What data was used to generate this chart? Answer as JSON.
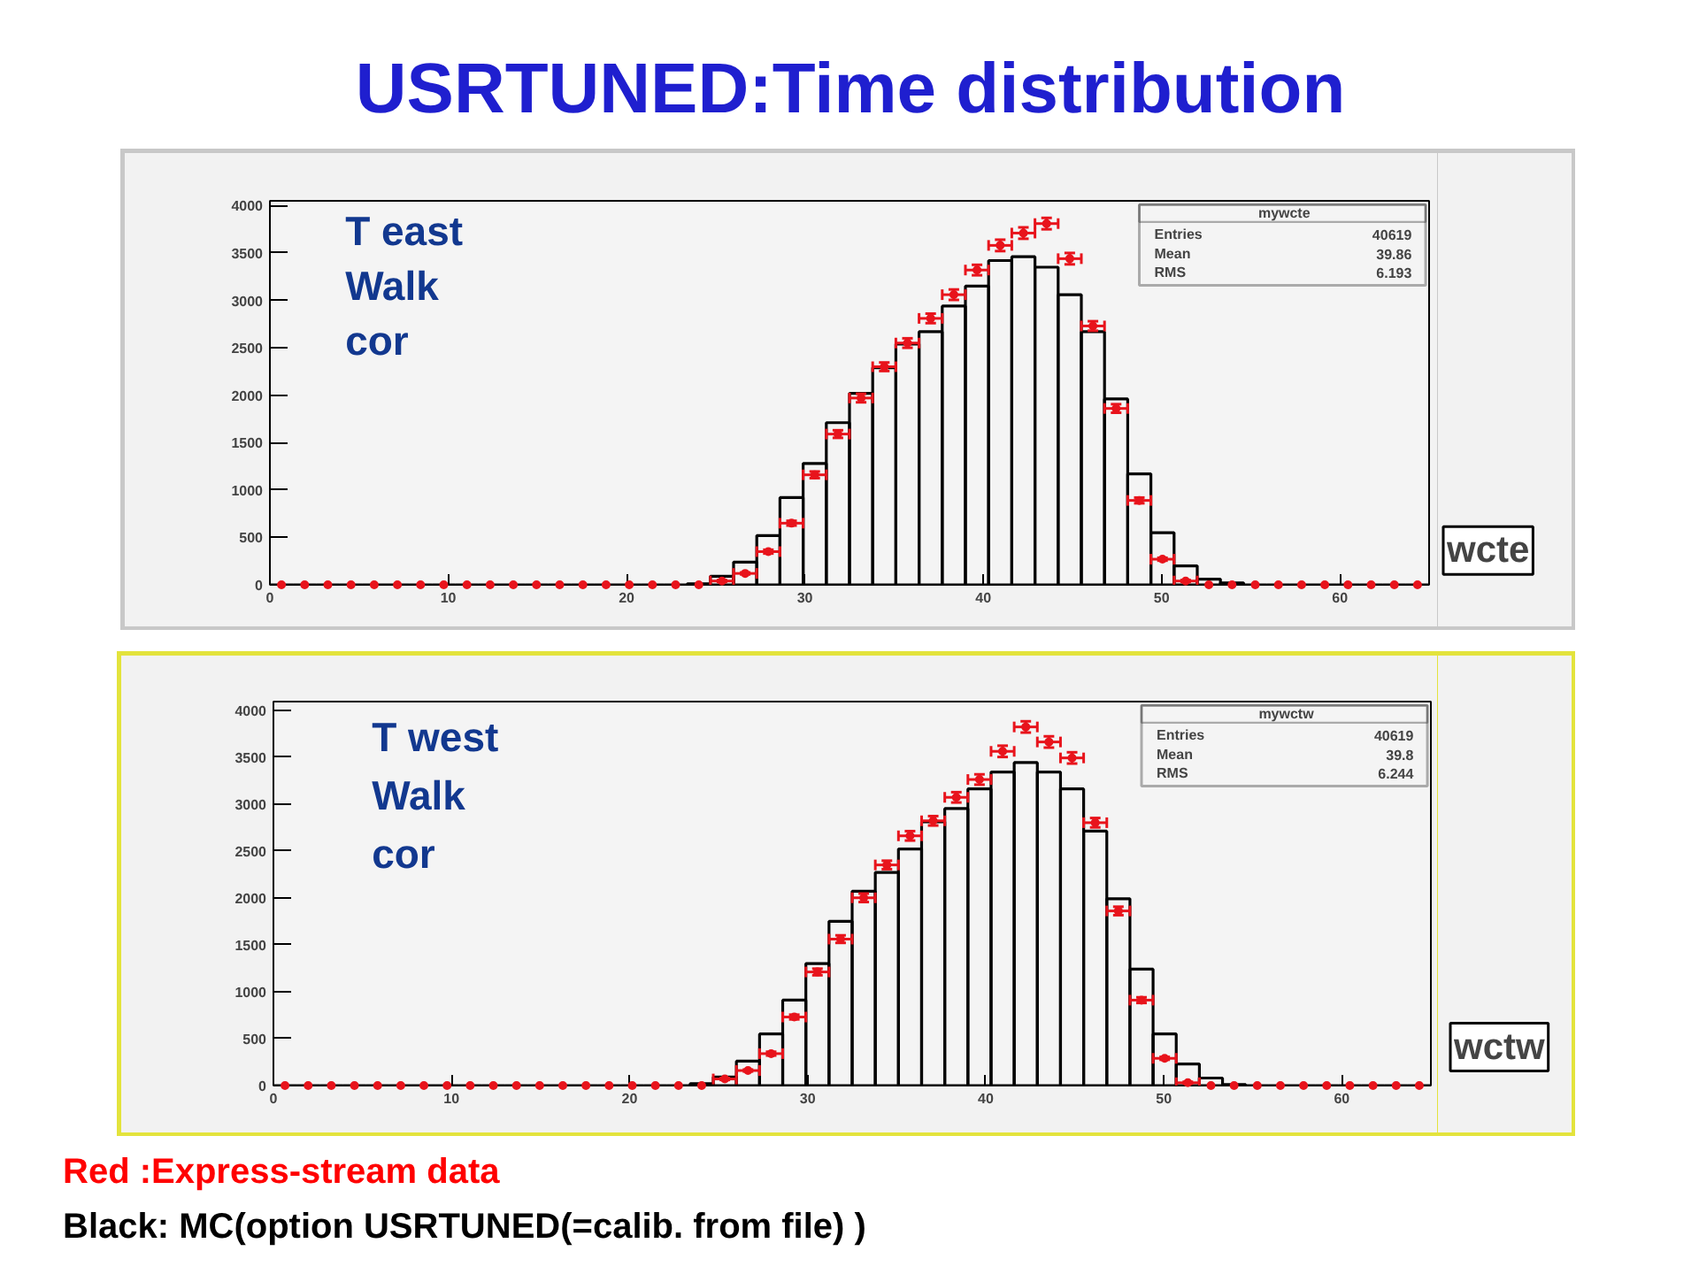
{
  "chart_data": [
    {
      "type": "histogram",
      "title": "USRTUNED:Time distribution",
      "bins": [
        0,
        1.3,
        2.6,
        3.9,
        5.2,
        6.5,
        7.8,
        9.1,
        10.4,
        11.7,
        13,
        14.3,
        15.6,
        16.9,
        18.2,
        19.5,
        20.8,
        22.1,
        23.4,
        24.7,
        26,
        27.3,
        28.6,
        29.9,
        31.2,
        32.5,
        33.8,
        35.1,
        36.4,
        37.7,
        39,
        40.3,
        41.6,
        42.9,
        44.2,
        45.5,
        46.8,
        48.1,
        49.4,
        50.7,
        52,
        53.3,
        54.6,
        55.9,
        57.2,
        58.5,
        59.8,
        61.1,
        62.4,
        63.7,
        65
      ],
      "xlim": [
        0,
        65
      ],
      "ylim": [
        0,
        4050
      ],
      "xticks": [
        0,
        10,
        20,
        30,
        40,
        50,
        60
      ],
      "yticks": [
        0,
        500,
        1000,
        1500,
        2000,
        2500,
        3000,
        3500,
        4000
      ],
      "series": [
        {
          "color": "#000000",
          "values": [
            0,
            0,
            0,
            0,
            0,
            0,
            0,
            0,
            0,
            0,
            0,
            0,
            0,
            0,
            0,
            0,
            0,
            0,
            10,
            90,
            240,
            520,
            920,
            1280,
            1710,
            2020,
            2290,
            2540,
            2670,
            2940,
            3150,
            3420,
            3460,
            3350,
            3060,
            2670,
            1960,
            1170,
            550,
            200,
            60,
            20,
            0,
            0,
            0,
            0,
            0,
            0,
            0,
            0
          ]
        },
        {
          "type": "scatter",
          "color": "#e8141c",
          "marker": "circle",
          "x": [
            0.65,
            1.95,
            3.25,
            4.55,
            5.85,
            7.15,
            8.45,
            9.75,
            11.05,
            12.35,
            13.65,
            14.95,
            16.25,
            17.55,
            18.85,
            20.15,
            21.45,
            22.75,
            24.05,
            25.35,
            26.65,
            27.95,
            29.25,
            30.55,
            31.85,
            33.15,
            34.45,
            35.75,
            37.05,
            38.35,
            39.65,
            40.95,
            42.25,
            43.55,
            44.85,
            46.15,
            47.45,
            48.75,
            50.05,
            51.35,
            52.65,
            53.95,
            55.25,
            56.55,
            57.85,
            59.15,
            60.45,
            61.75,
            63.05,
            64.35
          ],
          "values": [
            0,
            0,
            0,
            0,
            0,
            0,
            0,
            0,
            0,
            0,
            0,
            0,
            0,
            0,
            0,
            0,
            0,
            0,
            0,
            40,
            120,
            350,
            650,
            1160,
            1590,
            1970,
            2300,
            2550,
            2810,
            3060,
            3320,
            3580,
            3710,
            3810,
            3440,
            2730,
            1860,
            890,
            270,
            40,
            0,
            0,
            0,
            0,
            0,
            0,
            0,
            0,
            0,
            0
          ],
          "errors": [
            null,
            null,
            null,
            null,
            null,
            null,
            null,
            null,
            null,
            null,
            null,
            null,
            null,
            null,
            null,
            null,
            null,
            null,
            null,
            10,
            10,
            20,
            25,
            35,
            40,
            45,
            45,
            50,
            50,
            55,
            55,
            60,
            60,
            60,
            60,
            50,
            45,
            30,
            15,
            10,
            null,
            null,
            null,
            null,
            null,
            null,
            null,
            null,
            null,
            null
          ],
          "xerrors": [
            null,
            null,
            null,
            null,
            null,
            null,
            null,
            null,
            null,
            null,
            null,
            null,
            null,
            null,
            null,
            null,
            null,
            null,
            null,
            0.65,
            0.65,
            0.65,
            0.65,
            0.65,
            0.65,
            0.65,
            0.65,
            0.65,
            0.65,
            0.65,
            0.65,
            0.65,
            0.65,
            0.65,
            0.65,
            0.65,
            0.65,
            0.65,
            0.65,
            0.65,
            null,
            null,
            null,
            null,
            null,
            null,
            null,
            null,
            null,
            null
          ]
        }
      ],
      "annotations": [
        "T east",
        "Walk",
        "cor",
        "mywcte",
        "Entries",
        "40619",
        "Mean",
        "39.86",
        "RMS",
        "6.193",
        "wcte"
      ]
    },
    {
      "type": "histogram",
      "bins": [
        0,
        1.3,
        2.6,
        3.9,
        5.2,
        6.5,
        7.8,
        9.1,
        10.4,
        11.7,
        13,
        14.3,
        15.6,
        16.9,
        18.2,
        19.5,
        20.8,
        22.1,
        23.4,
        24.7,
        26,
        27.3,
        28.6,
        29.9,
        31.2,
        32.5,
        33.8,
        35.1,
        36.4,
        37.7,
        39,
        40.3,
        41.6,
        42.9,
        44.2,
        45.5,
        46.8,
        48.1,
        49.4,
        50.7,
        52,
        53.3,
        54.6,
        55.9,
        57.2,
        58.5,
        59.8,
        61.1,
        62.4,
        63.7,
        65
      ],
      "xlim": [
        0,
        65
      ],
      "ylim": [
        0,
        4090
      ],
      "xticks": [
        0,
        10,
        20,
        30,
        40,
        50,
        60
      ],
      "yticks": [
        0,
        500,
        1000,
        1500,
        2000,
        2500,
        3000,
        3500,
        4000
      ],
      "series": [
        {
          "color": "#000000",
          "values": [
            0,
            0,
            0,
            0,
            0,
            0,
            0,
            0,
            0,
            0,
            0,
            0,
            0,
            0,
            0,
            0,
            0,
            0,
            20,
            90,
            260,
            550,
            910,
            1300,
            1750,
            2070,
            2270,
            2520,
            2810,
            2950,
            3160,
            3340,
            3440,
            3340,
            3160,
            2710,
            1990,
            1240,
            550,
            230,
            80,
            10,
            0,
            0,
            0,
            0,
            0,
            0,
            0,
            0
          ]
        },
        {
          "type": "scatter",
          "color": "#e8141c",
          "marker": "circle",
          "x": [
            0.65,
            1.95,
            3.25,
            4.55,
            5.85,
            7.15,
            8.45,
            9.75,
            11.05,
            12.35,
            13.65,
            14.95,
            16.25,
            17.55,
            18.85,
            20.15,
            21.45,
            22.75,
            24.05,
            25.35,
            26.65,
            27.95,
            29.25,
            30.55,
            31.85,
            33.15,
            34.45,
            35.75,
            37.05,
            38.35,
            39.65,
            40.95,
            42.25,
            43.55,
            44.85,
            46.15,
            47.45,
            48.75,
            50.05,
            51.35,
            52.65,
            53.95,
            55.25,
            56.55,
            57.85,
            59.15,
            60.45,
            61.75,
            63.05,
            64.35
          ],
          "values": [
            0,
            0,
            0,
            0,
            0,
            0,
            0,
            0,
            0,
            0,
            0,
            0,
            0,
            0,
            0,
            0,
            0,
            0,
            0,
            70,
            160,
            340,
            730,
            1210,
            1560,
            2000,
            2350,
            2660,
            2820,
            3070,
            3260,
            3560,
            3820,
            3660,
            3490,
            2800,
            1860,
            910,
            290,
            30,
            0,
            0,
            0,
            0,
            0,
            0,
            0,
            0,
            0,
            0
          ],
          "errors": [
            null,
            null,
            null,
            null,
            null,
            null,
            null,
            null,
            null,
            null,
            null,
            null,
            null,
            null,
            null,
            null,
            null,
            null,
            null,
            10,
            10,
            20,
            25,
            35,
            40,
            45,
            45,
            50,
            50,
            55,
            55,
            60,
            60,
            60,
            60,
            50,
            45,
            30,
            15,
            10,
            null,
            null,
            null,
            null,
            null,
            null,
            null,
            null,
            null,
            null
          ],
          "xerrors": [
            null,
            null,
            null,
            null,
            null,
            null,
            null,
            null,
            null,
            null,
            null,
            null,
            null,
            null,
            null,
            null,
            null,
            null,
            null,
            0.65,
            0.65,
            0.65,
            0.65,
            0.65,
            0.65,
            0.65,
            0.65,
            0.65,
            0.65,
            0.65,
            0.65,
            0.65,
            0.65,
            0.65,
            0.65,
            0.65,
            0.65,
            0.65,
            0.65,
            0.65,
            null,
            null,
            null,
            null,
            null,
            null,
            null,
            null,
            null,
            null
          ]
        }
      ],
      "annotations": [
        "T west",
        "Walk",
        "cor",
        "mywctw",
        "Entries",
        "40619",
        "Mean",
        "39.8",
        "RMS",
        "6.244",
        "wctw",
        "Red :Express-stream data",
        "Black: MC(option USRTUNED(=calib. from file) )"
      ]
    }
  ]
}
